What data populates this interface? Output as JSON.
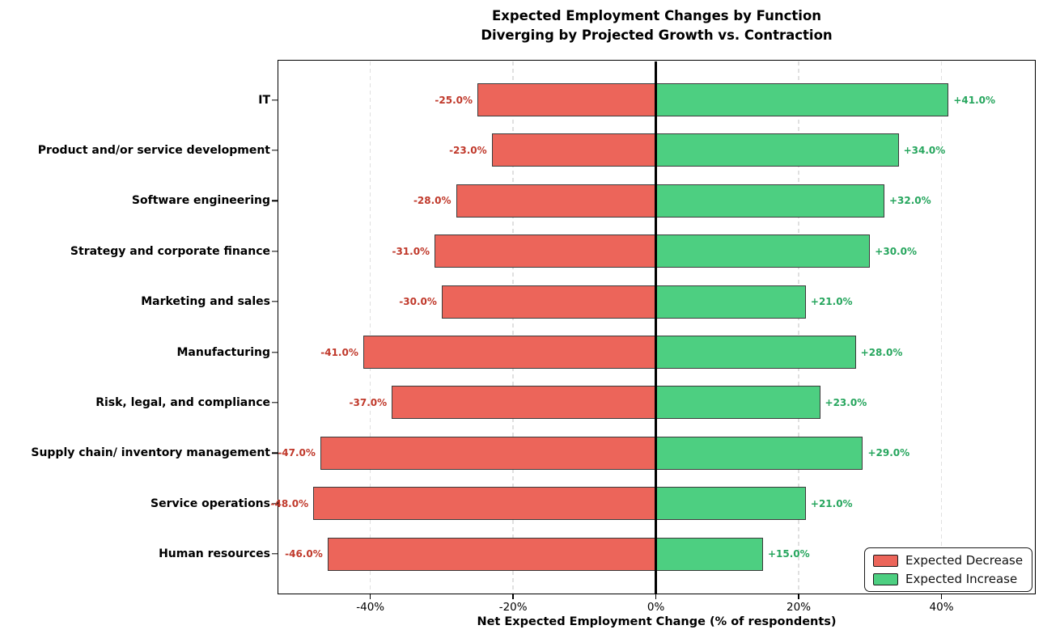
{
  "title": "Expected Employment Changes by Function",
  "subtitle": "Diverging by Projected Growth vs. Contraction",
  "chart_data": {
    "type": "bar",
    "variant": "horizontal-diverging",
    "title": "Expected Employment Changes by Function",
    "subtitle": "Diverging by Projected Growth vs. Contraction",
    "xlabel": "Net Expected Employment Change (% of respondents)",
    "ylabel": "",
    "xlim": [
      -53,
      53.2
    ],
    "grid": "vertical-dashed",
    "zero_line": true,
    "legend_position": "lower right",
    "categories": [
      "IT",
      "Product and/or service development",
      "Software engineering",
      "Strategy and corporate finance",
      "Marketing and sales",
      "Manufacturing",
      "Risk, legal, and compliance",
      "Supply chain/ inventory management",
      "Service operations",
      "Human resources"
    ],
    "series": [
      {
        "name": "Expected Decrease",
        "values": [
          -25.0,
          -23.0,
          -28.0,
          -31.0,
          -30.0,
          -41.0,
          -37.0,
          -47.0,
          -48.0,
          -46.0
        ],
        "bar_color": "#EC655A",
        "label_color": "#C0392B"
      },
      {
        "name": "Expected Increase",
        "values": [
          41.0,
          34.0,
          32.0,
          30.0,
          21.0,
          28.0,
          23.0,
          29.0,
          21.0,
          15.0
        ],
        "bar_color": "#4DCF81",
        "label_color": "#27A65E"
      }
    ],
    "data_labels": {
      "decrease": [
        "-25.0%",
        "-23.0%",
        "-28.0%",
        "-31.0%",
        "-30.0%",
        "-41.0%",
        "-37.0%",
        "-47.0%",
        "-48.0%",
        "-46.0%"
      ],
      "increase": [
        "+41.0%",
        "+34.0%",
        "+32.0%",
        "+30.0%",
        "+21.0%",
        "+28.0%",
        "+23.0%",
        "+29.0%",
        "+21.0%",
        "+15.0%"
      ]
    },
    "x_ticks": [
      {
        "value": -40,
        "label": "-40%"
      },
      {
        "value": -20,
        "label": "-20%"
      },
      {
        "value": 0,
        "label": "0%"
      },
      {
        "value": 20,
        "label": "20%"
      },
      {
        "value": 40,
        "label": "40%"
      }
    ],
    "legend": {
      "items": [
        {
          "label": "Expected Decrease",
          "color": "#EC655A"
        },
        {
          "label": "Expected Increase",
          "color": "#4DCF81"
        }
      ]
    },
    "colors": {
      "bar_edge": "#3a3a3a",
      "gridline": "#e0e0e0",
      "zero_line": "#000000"
    }
  }
}
